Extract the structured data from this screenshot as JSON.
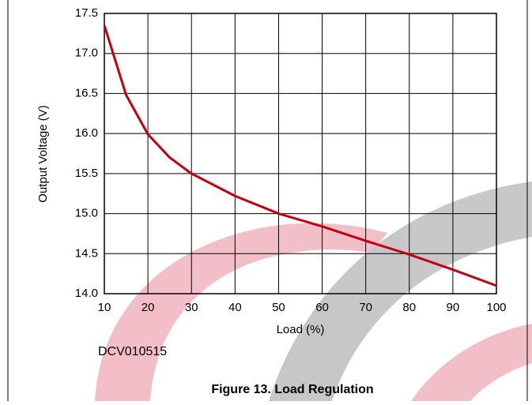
{
  "chart_data": {
    "type": "line",
    "xlabel": "Load (%)",
    "ylabel": "Output Voltage (V)",
    "x": [
      10,
      15,
      20,
      25,
      30,
      40,
      50,
      60,
      70,
      80,
      90,
      100
    ],
    "series": [
      {
        "name": "Output Voltage",
        "color": "#c0000e",
        "values": [
          17.35,
          16.48,
          15.99,
          15.7,
          15.5,
          15.22,
          15.0,
          14.84,
          14.66,
          14.49,
          14.3,
          14.1
        ]
      }
    ],
    "xlim": [
      10,
      100
    ],
    "xticks": [
      10,
      20,
      30,
      40,
      50,
      60,
      70,
      80,
      90,
      100
    ],
    "ylim": [
      14.0,
      17.5
    ],
    "yticks": [
      {
        "value": 14.0,
        "label": "14.0"
      },
      {
        "value": 14.5,
        "label": "14.5"
      },
      {
        "value": 15.0,
        "label": "15.0"
      },
      {
        "value": 15.5,
        "label": "15.5"
      },
      {
        "value": 16.0,
        "label": "16.0"
      },
      {
        "value": 16.5,
        "label": "16.5"
      },
      {
        "value": 17.0,
        "label": "17.0"
      },
      {
        "value": 17.5,
        "label": "17.5"
      }
    ],
    "grid": true,
    "figure_id": "DCV010515",
    "caption": "Figure 13. Load Regulation"
  }
}
